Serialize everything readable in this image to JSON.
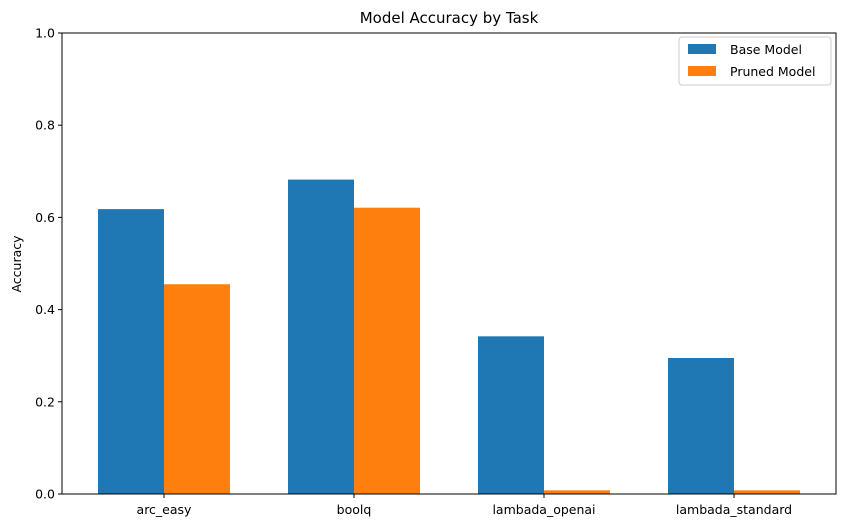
{
  "chart_data": {
    "type": "bar",
    "title": "Model Accuracy by Task",
    "xlabel": "",
    "ylabel": "Accuracy",
    "ylim": [
      0,
      1.0
    ],
    "yticks": [
      "0.0",
      "0.2",
      "0.4",
      "0.6",
      "0.8",
      "1.0"
    ],
    "categories": [
      "arc_easy",
      "boolq",
      "lambada_openai",
      "lambada_standard"
    ],
    "series": [
      {
        "name": "Base Model",
        "color": "#1f77b4",
        "values": [
          0.618,
          0.682,
          0.342,
          0.295
        ]
      },
      {
        "name": "Pruned Model",
        "color": "#ff7f0e",
        "values": [
          0.455,
          0.621,
          0.008,
          0.008
        ]
      }
    ],
    "legend": "top-right",
    "grid": false
  }
}
